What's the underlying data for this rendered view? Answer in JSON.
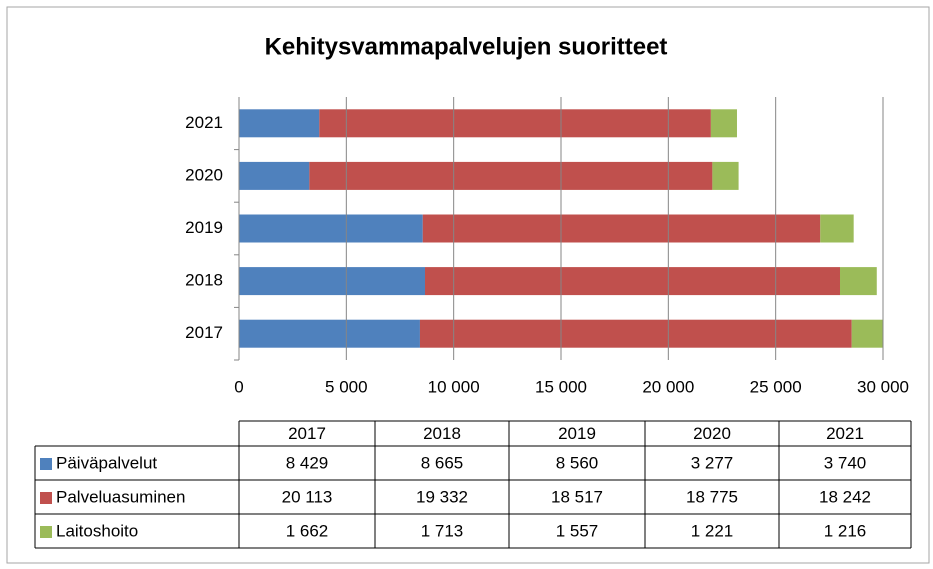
{
  "chart_data": {
    "type": "bar",
    "orientation": "horizontal",
    "stacked": true,
    "title": "Kehitysvammapalvelujen suoritteet",
    "categories": [
      "2017",
      "2018",
      "2019",
      "2020",
      "2021"
    ],
    "series": [
      {
        "name": "Päiväpalvelut",
        "color": "#4f81bd",
        "values": [
          8429,
          8665,
          8560,
          3277,
          3740
        ],
        "value_labels": [
          "8 429",
          "8 665",
          "8 560",
          "3 277",
          "3 740"
        ]
      },
      {
        "name": "Palveluasuminen",
        "color": "#c0504d",
        "values": [
          20113,
          19332,
          18517,
          18775,
          18242
        ],
        "value_labels": [
          "20 113",
          "19 332",
          "18 517",
          "18 775",
          "18 242"
        ]
      },
      {
        "name": "Laitoshoito",
        "color": "#9bbb59",
        "values": [
          1662,
          1713,
          1557,
          1221,
          1216
        ],
        "value_labels": [
          "1 662",
          "1 713",
          "1 557",
          "1 221",
          "1 216"
        ]
      }
    ],
    "xlim": [
      0,
      30000
    ],
    "xticks": [
      0,
      {
        "value": 5000,
        "label": "5 000"
      },
      {
        "value": 10000,
        "label": "10 000"
      },
      {
        "value": 15000,
        "label": "15 000"
      },
      {
        "value": 20000,
        "label": "20 000"
      },
      {
        "value": 25000,
        "label": "25 000"
      },
      {
        "value": 30000,
        "label": "30 000"
      }
    ],
    "grid": true,
    "data_table": true
  }
}
